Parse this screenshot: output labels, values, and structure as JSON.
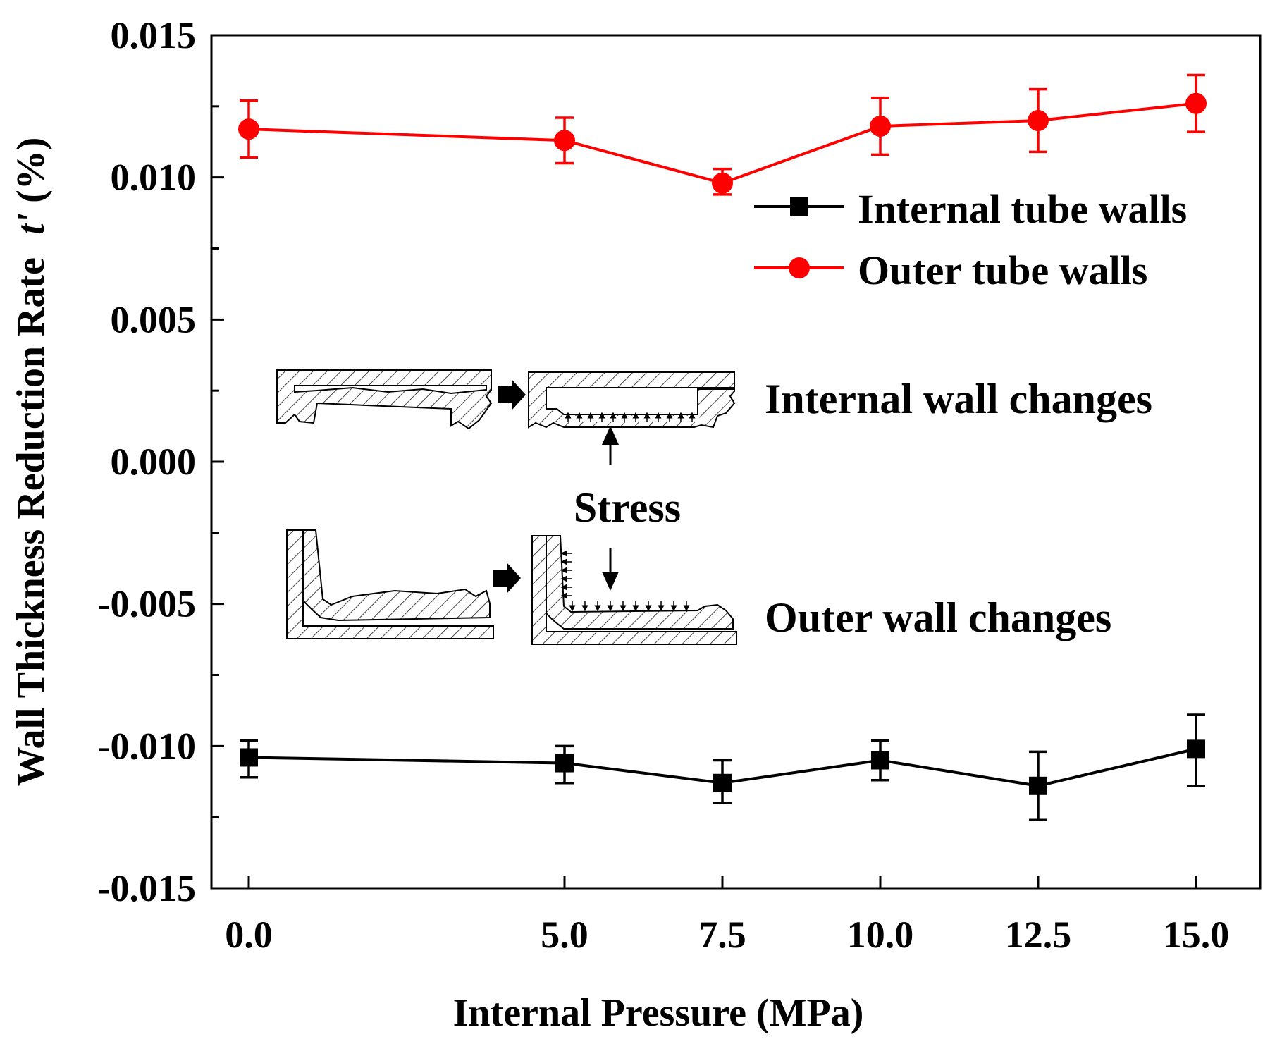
{
  "chart_data": {
    "type": "line",
    "title": "",
    "xlabel": "Internal Pressure (MPa)",
    "ylabel_main": "Wall Thickness Reduction Rate",
    "ylabel_symbol": "t'",
    "ylabel_unit": "(%)",
    "x": [
      0.0,
      5.0,
      7.5,
      10.0,
      12.5,
      15.0
    ],
    "x_tick_labels": [
      "0.0",
      "5.0",
      "7.5",
      "10.0",
      "12.5",
      "15.0"
    ],
    "y_ticks": [
      0.015,
      0.01,
      0.005,
      0.0,
      -0.005,
      -0.01,
      -0.015
    ],
    "y_tick_labels": [
      "0.015",
      "0.010",
      "0.005",
      "0.000",
      "-0.005",
      "-0.010",
      "-0.015"
    ],
    "ylim": [
      -0.015,
      0.015
    ],
    "grid": false,
    "legend_position": "top-right",
    "series": [
      {
        "name": "Internal tube walls",
        "color": "#000000",
        "marker": "square",
        "values": [
          -0.0104,
          -0.0106,
          -0.0113,
          -0.0105,
          -0.0114,
          -0.0101
        ],
        "error_low": [
          -0.0111,
          -0.0113,
          -0.012,
          -0.0112,
          -0.0126,
          -0.0114
        ],
        "error_high": [
          -0.0098,
          -0.01,
          -0.0105,
          -0.0098,
          -0.0102,
          -0.0089
        ]
      },
      {
        "name": "Outer tube walls",
        "color": "#ff0000",
        "marker": "circle",
        "values": [
          0.0117,
          0.0113,
          0.0098,
          0.0118,
          0.012,
          0.0126
        ],
        "error_low": [
          0.0107,
          0.0105,
          0.0094,
          0.0108,
          0.0109,
          0.0116
        ],
        "error_high": [
          0.0127,
          0.0121,
          0.0103,
          0.0128,
          0.0131,
          0.0136
        ]
      }
    ],
    "annotations": {
      "internal_wall_changes": "Internal wall changes",
      "stress": "Stress",
      "outer_wall_changes": "Outer wall changes"
    }
  }
}
